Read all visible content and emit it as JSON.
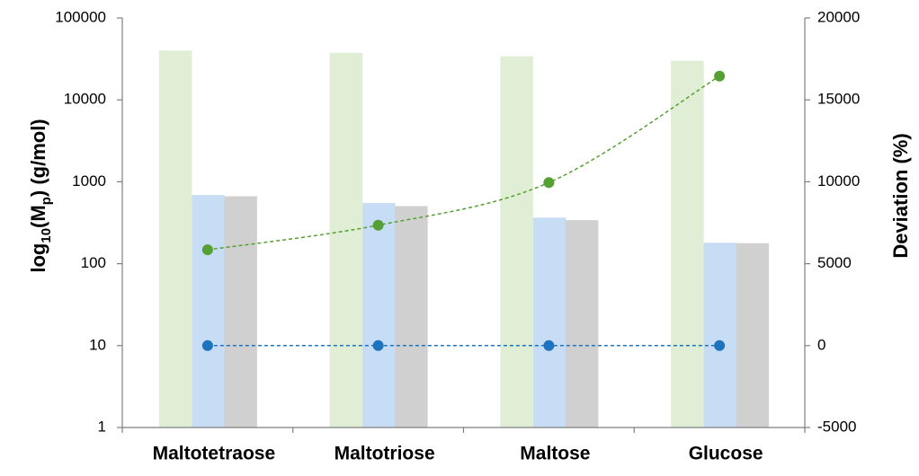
{
  "chart_data": {
    "type": "bar",
    "categories": [
      "Maltotetraose",
      "Maltotriose",
      "Maltose",
      "Glucose"
    ],
    "bar_series": [
      {
        "color": "#dfeed4",
        "values": [
          40000,
          37500,
          34000,
          30000
        ]
      },
      {
        "color": "#c6ddf5",
        "values": [
          690,
          550,
          365,
          180
        ]
      },
      {
        "color": "#d0d0d0",
        "values": [
          665,
          505,
          340,
          178
        ]
      }
    ],
    "line_series": [
      {
        "color": "#55a032",
        "values": [
          5850,
          7350,
          9950,
          16450
        ]
      },
      {
        "color": "#1e73be",
        "values": [
          0,
          0,
          0,
          0
        ]
      }
    ],
    "y_left": {
      "label_main": "log",
      "label_sub1": "10",
      "label_mid": "(M",
      "label_sub2": "p",
      "label_end": ") (g/mol)",
      "scale": "log",
      "ylim": [
        1,
        100000
      ],
      "ticks": [
        1,
        10,
        100,
        1000,
        10000,
        100000
      ],
      "tick_labels": [
        "1",
        "10",
        "100",
        "1000",
        "10000",
        "100000"
      ]
    },
    "y_right": {
      "label": "Deviation (%)",
      "ylim": [
        -5000,
        20000
      ],
      "ticks": [
        -5000,
        0,
        5000,
        10000,
        15000,
        20000
      ],
      "tick_labels": [
        "-5000",
        "0",
        "5000",
        "10000",
        "15000",
        "20000"
      ]
    },
    "grid": false,
    "legend": "none"
  }
}
